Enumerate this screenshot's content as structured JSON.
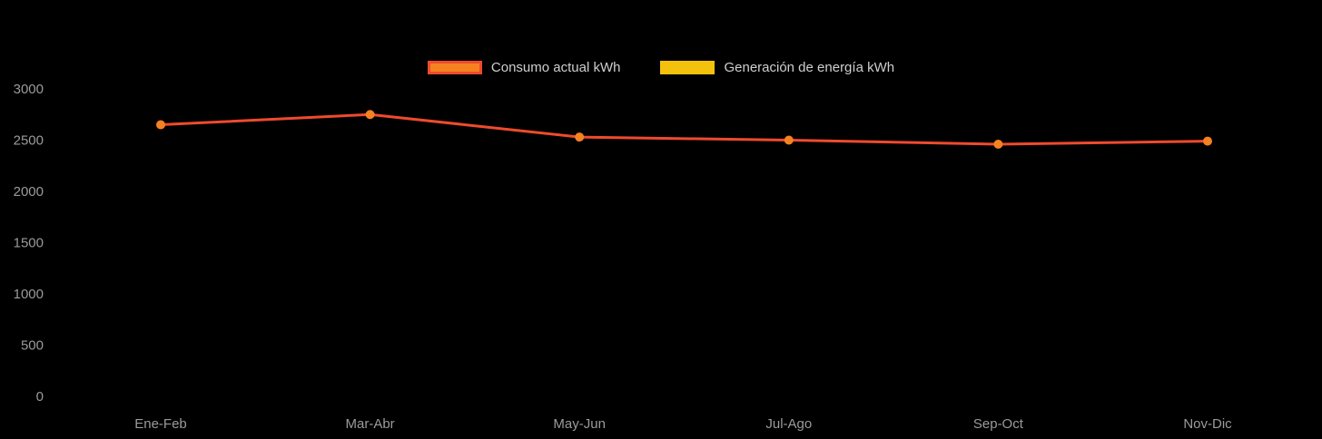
{
  "chart_data": {
    "type": "line",
    "title": "",
    "xlabel": "",
    "ylabel": "",
    "categories": [
      "Ene-Feb",
      "Mar-Abr",
      "May-Jun",
      "Jul-Ago",
      "Sep-Oct",
      "Nov-Dic"
    ],
    "series": [
      {
        "name": "Consumo actual kWh",
        "values": [
          2650,
          2750,
          2530,
          2500,
          2460,
          2490
        ],
        "line_color": "#ef4a2e",
        "point_color": "#f58220",
        "swatch_fill": "#f58220",
        "swatch_border": "#ef4a2e"
      },
      {
        "name": "Generación de energía kWh",
        "values": [],
        "line_color": "#f4c20d",
        "point_color": "#f4c20d",
        "swatch_fill": "#f4c20d",
        "swatch_border": "#f4c20d"
      }
    ],
    "ylim": [
      0,
      3000
    ],
    "y_ticks": [
      0,
      500,
      1000,
      1500,
      2000,
      2500,
      3000
    ],
    "grid": false,
    "legend_position": "top"
  },
  "colors": {
    "background": "#000000",
    "tick_text": "#9b9b9b",
    "legend_text": "#cfcfcf"
  }
}
